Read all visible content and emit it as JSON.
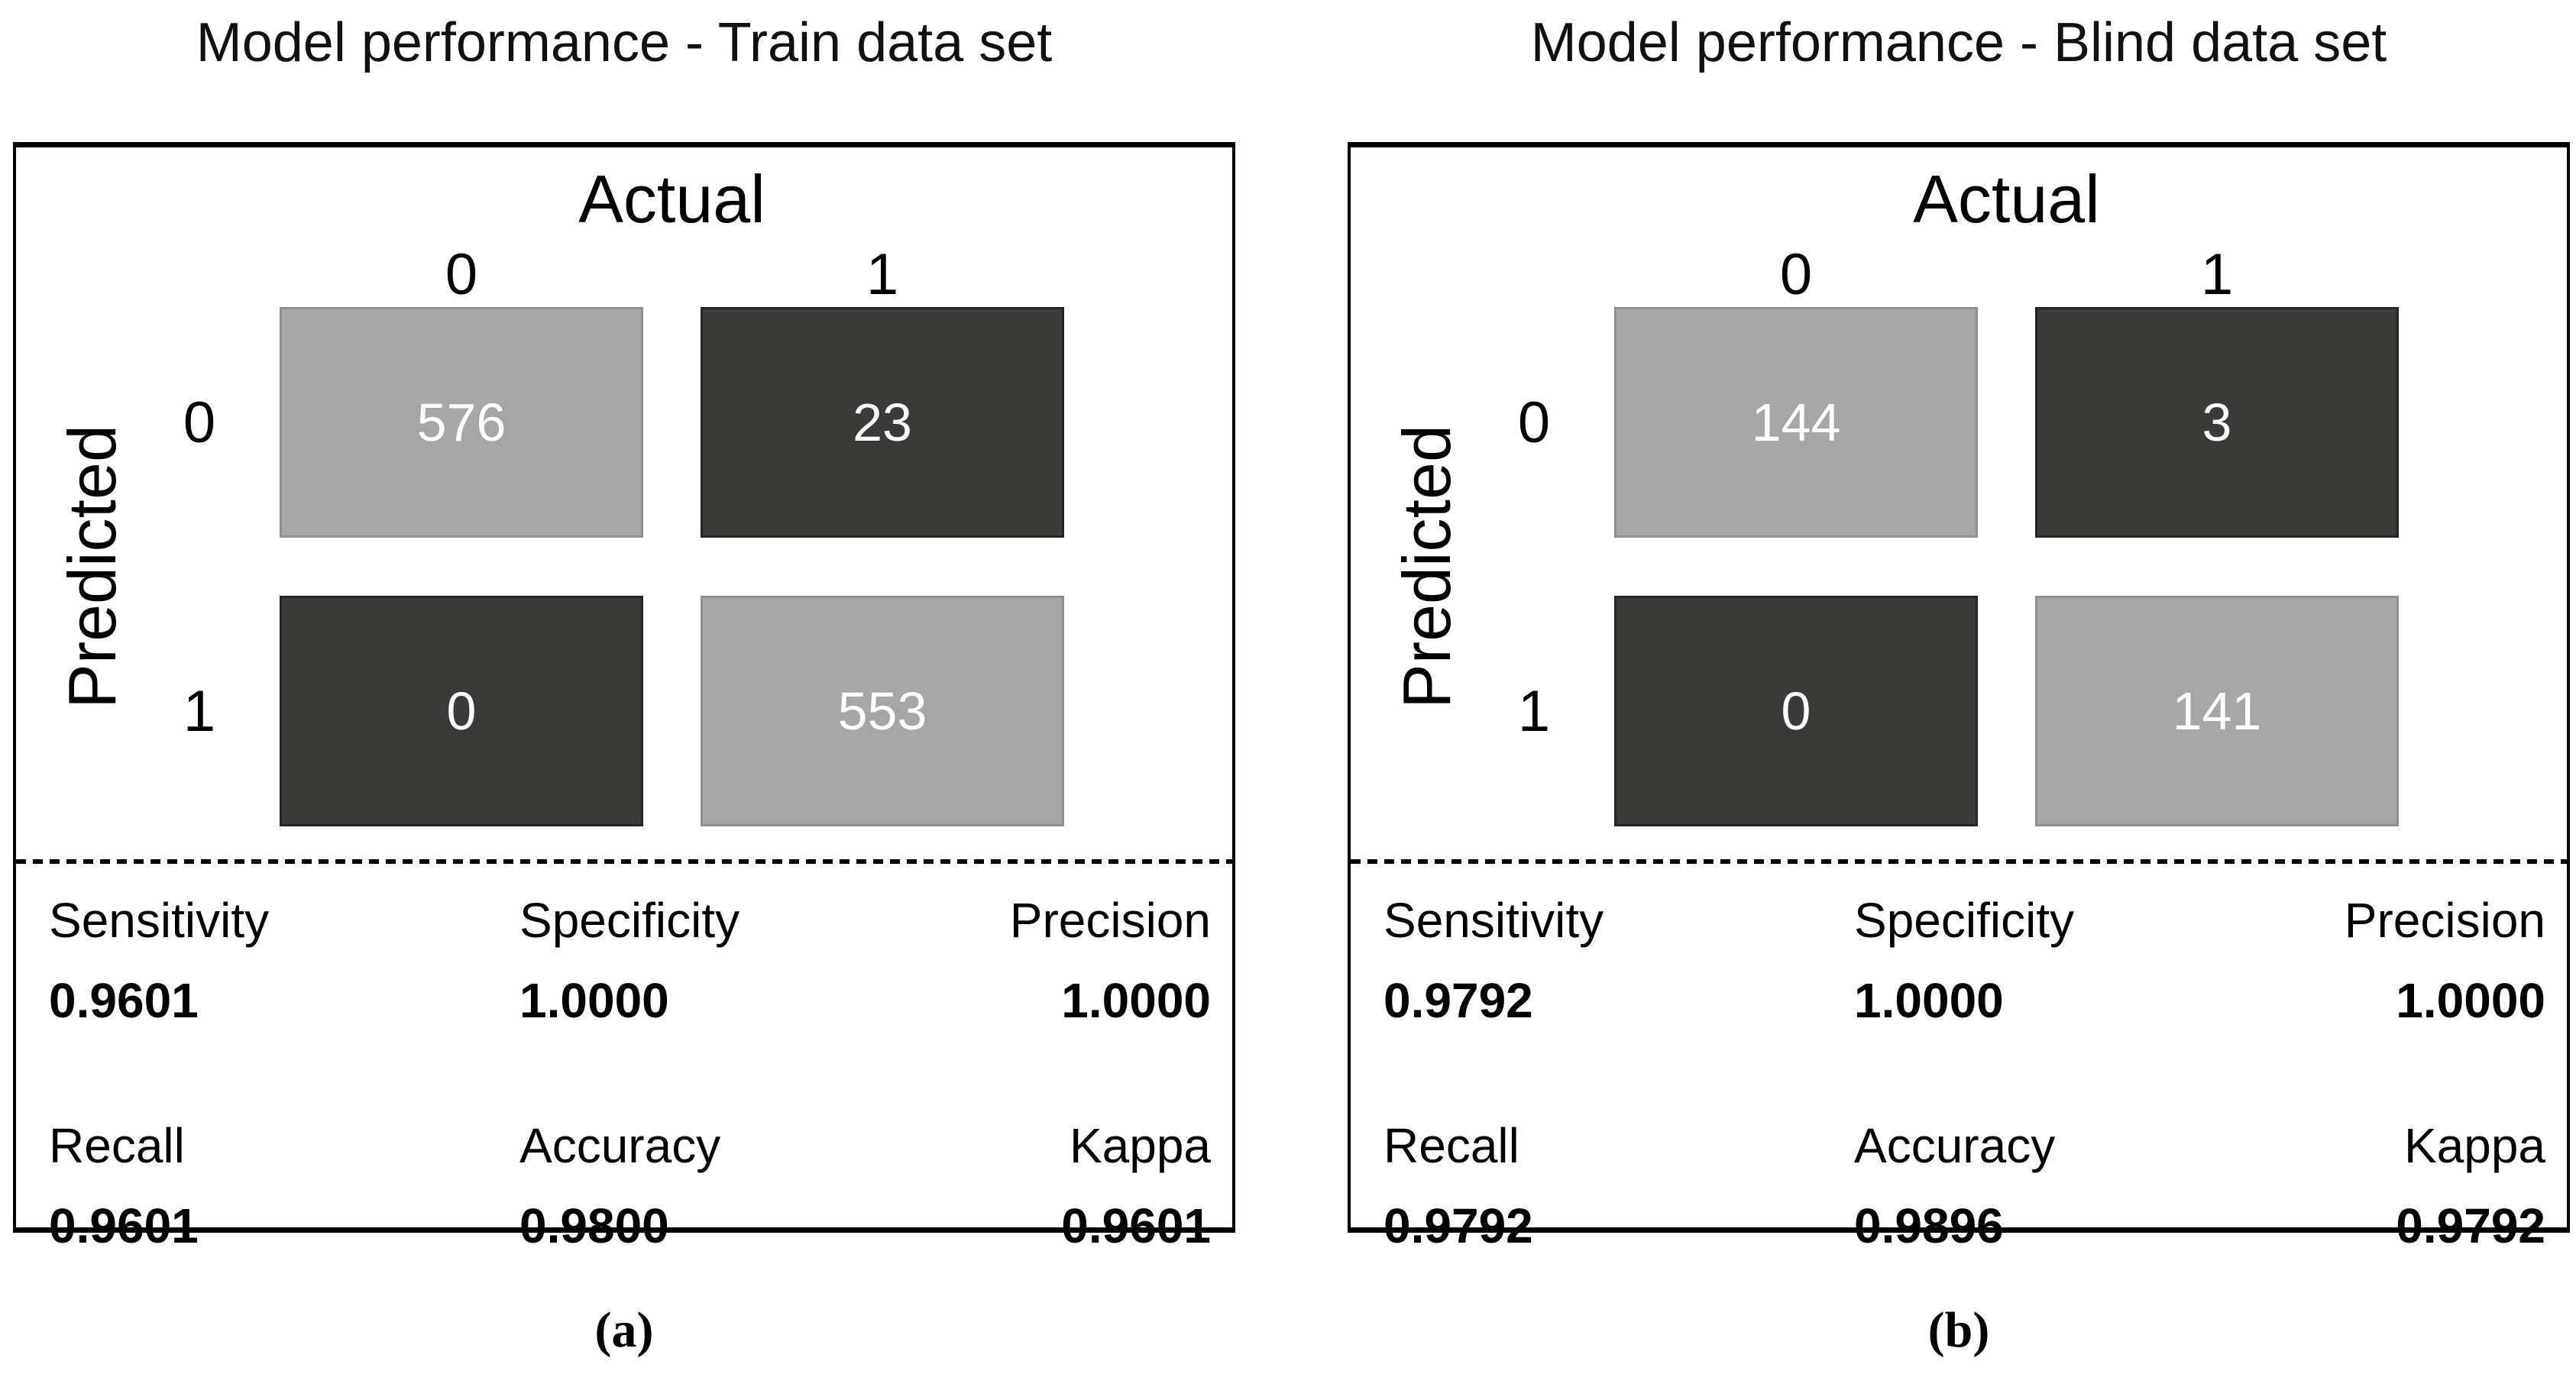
{
  "colors": {
    "cell_light": "#a6a6a6",
    "cell_light_border": "#8f8f8f",
    "cell_dark": "#3a3a38",
    "cell_text": "#ffffff",
    "line_color": "#000000"
  },
  "panels": [
    {
      "title": "Model performance - Train data set",
      "actual_label": "Actual",
      "predicted_label": "Predicted",
      "col_labels": [
        "0",
        "1"
      ],
      "row_labels": [
        "0",
        "1"
      ],
      "cells": [
        "576",
        "23",
        "0",
        "553"
      ],
      "metrics": [
        {
          "label": "Sensitivity",
          "value": "0.9601"
        },
        {
          "label": "Specificity",
          "value": "1.0000"
        },
        {
          "label": "Precision",
          "value": "1.0000"
        },
        {
          "label": "Recall",
          "value": "0.9601"
        },
        {
          "label": "Accuracy",
          "value": "0.9800"
        },
        {
          "label": "Kappa",
          "value": "0.9601"
        }
      ],
      "caption": "(a)"
    },
    {
      "title": "Model performance - Blind data set",
      "actual_label": "Actual",
      "predicted_label": "Predicted",
      "col_labels": [
        "0",
        "1"
      ],
      "row_labels": [
        "0",
        "1"
      ],
      "cells": [
        "144",
        "3",
        "0",
        "141"
      ],
      "metrics": [
        {
          "label": "Sensitivity",
          "value": "0.9792"
        },
        {
          "label": "Specificity",
          "value": "1.0000"
        },
        {
          "label": "Precision",
          "value": "1.0000"
        },
        {
          "label": "Recall",
          "value": "0.9792"
        },
        {
          "label": "Accuracy",
          "value": "0.9896"
        },
        {
          "label": "Kappa",
          "value": "0.9792"
        }
      ],
      "caption": "(b)"
    }
  ],
  "chart_data": [
    {
      "type": "heatmap",
      "title": "Model performance - Train data set",
      "xlabel": "Actual",
      "ylabel": "Predicted",
      "x_categories": [
        "0",
        "1"
      ],
      "y_categories": [
        "0",
        "1"
      ],
      "values": [
        [
          576,
          23
        ],
        [
          0,
          553
        ]
      ],
      "cell_tones": [
        [
          "light",
          "dark"
        ],
        [
          "dark",
          "light"
        ]
      ],
      "metrics": {
        "sensitivity": 0.9601,
        "specificity": 1.0,
        "precision": 1.0,
        "recall": 0.9601,
        "accuracy": 0.98,
        "kappa": 0.9601
      },
      "caption": "(a)",
      "legend": "none",
      "grid": "off"
    },
    {
      "type": "heatmap",
      "title": "Model performance - Blind data set",
      "xlabel": "Actual",
      "ylabel": "Predicted",
      "x_categories": [
        "0",
        "1"
      ],
      "y_categories": [
        "0",
        "1"
      ],
      "values": [
        [
          144,
          3
        ],
        [
          0,
          141
        ]
      ],
      "cell_tones": [
        [
          "light",
          "dark"
        ],
        [
          "dark",
          "light"
        ]
      ],
      "metrics": {
        "sensitivity": 0.9792,
        "specificity": 1.0,
        "precision": 1.0,
        "recall": 0.9792,
        "accuracy": 0.9896,
        "kappa": 0.9792
      },
      "caption": "(b)",
      "legend": "none",
      "grid": "off"
    }
  ]
}
